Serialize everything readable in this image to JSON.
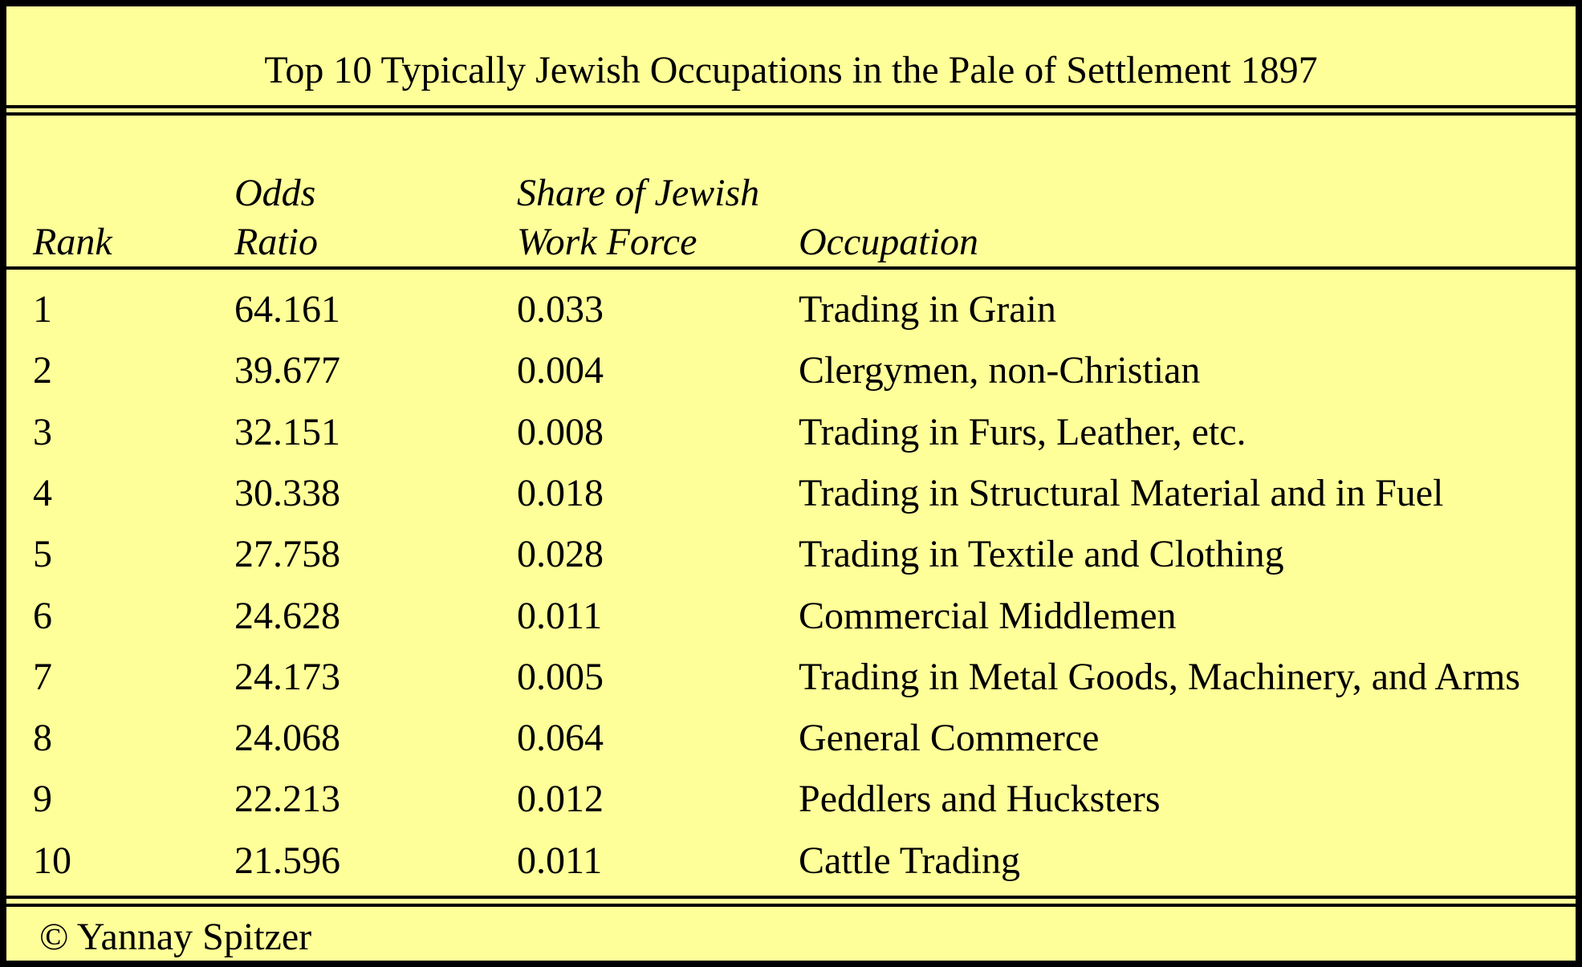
{
  "chart_data": {
    "type": "table",
    "title": "Top 10 Typically Jewish Occupations in the Pale of Settlement 1897",
    "columns": [
      {
        "line1": "",
        "line2": "Rank"
      },
      {
        "line1": "Odds",
        "line2": "Ratio"
      },
      {
        "line1": "Share of Jewish",
        "line2": "Work Force"
      },
      {
        "line1": "",
        "line2": "Occupation"
      }
    ],
    "rows": [
      [
        "1",
        "64.161",
        "0.033",
        "Trading in Grain"
      ],
      [
        "2",
        "39.677",
        "0.004",
        "Clergymen, non-Christian"
      ],
      [
        "3",
        "32.151",
        "0.008",
        "Trading in Furs, Leather, etc."
      ],
      [
        "4",
        "30.338",
        "0.018",
        "Trading in Structural Material and in Fuel"
      ],
      [
        "5",
        "27.758",
        "0.028",
        "Trading in Textile and Clothing"
      ],
      [
        "6",
        "24.628",
        "0.011",
        "Commercial Middlemen"
      ],
      [
        "7",
        "24.173",
        "0.005",
        "Trading in Metal Goods, Machinery, and Arms"
      ],
      [
        "8",
        "24.068",
        "0.064",
        "General Commerce"
      ],
      [
        "9",
        "22.213",
        "0.012",
        "Peddlers and Hucksters"
      ],
      [
        "10",
        "21.596",
        "0.011",
        "Cattle Trading"
      ]
    ],
    "footer": "© Yannay Spitzer",
    "colors": {
      "background": "#ffff99",
      "text": "#000000",
      "rules": "#000000"
    }
  }
}
